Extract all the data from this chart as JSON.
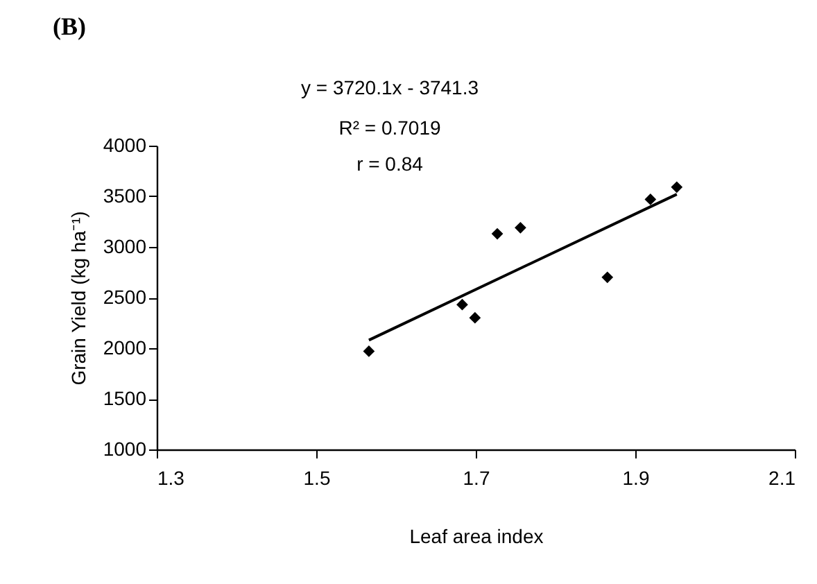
{
  "chart_data": {
    "type": "scatter",
    "title": "(B)",
    "xlabel": "Leaf area index",
    "ylabel": "Grain Yield (kg ha⁻¹)",
    "annotations": [
      "y = 3720.1x - 3741.3",
      "R² = 0.7019",
      "r = 0.84"
    ],
    "series": [
      {
        "color": "#000000",
        "marker": "diamond",
        "x": [
          1.566,
          1.683,
          1.699,
          1.727,
          1.756,
          1.865,
          1.919,
          1.952
        ],
        "values": [
          1970,
          2430,
          2300,
          3130,
          3190,
          2700,
          3470,
          3590
        ]
      },
      {
        "type": "line",
        "color": "#000000",
        "marker": "none",
        "x": [
          1.566,
          1.952
        ],
        "values": [
          2080,
          3520
        ]
      }
    ],
    "xlim": [
      1.3,
      2.1
    ],
    "xticks": [
      1.3,
      1.5,
      1.7,
      1.9,
      2.1
    ],
    "ylim": [
      1000,
      4000
    ],
    "yticks": [
      1000,
      1500,
      2000,
      2500,
      3000,
      3500,
      4000
    ],
    "grid": false
  }
}
